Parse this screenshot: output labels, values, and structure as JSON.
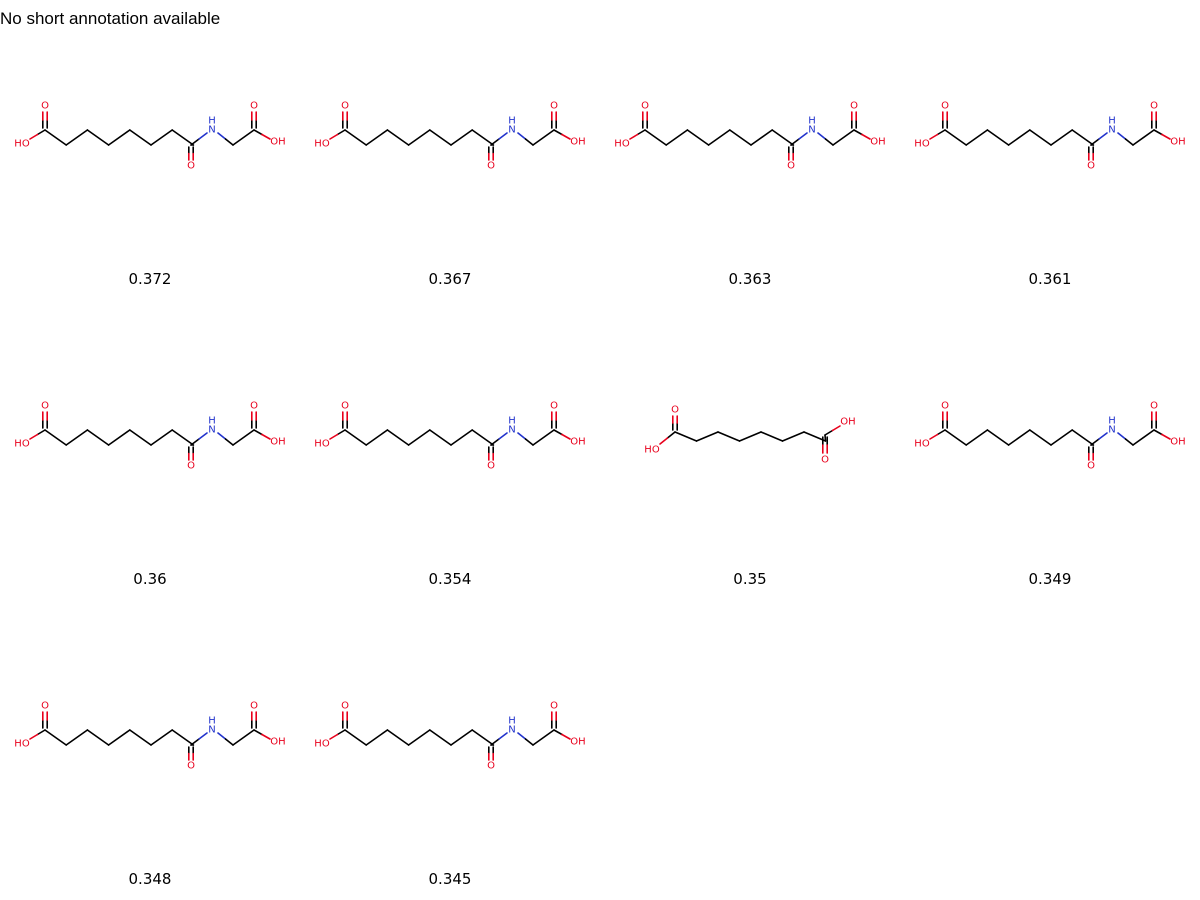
{
  "header": {
    "title": "No short annotation available"
  },
  "colors": {
    "carbon": "#000000",
    "oxygen": "#e8001c",
    "nitrogen": "#2233cc"
  },
  "atom_labels": {
    "oxygen": "O",
    "hydroxyl_left": "HO",
    "hydroxyl_right": "OH",
    "amine": "N",
    "amine_h": "H"
  },
  "molecules": [
    {
      "structure": "amide-glycine-conjugate",
      "score": "0.372"
    },
    {
      "structure": "amide-glycine-conjugate",
      "score": "0.367"
    },
    {
      "structure": "amide-glycine-conjugate",
      "score": "0.363"
    },
    {
      "structure": "amide-glycine-conjugate",
      "score": "0.361"
    },
    {
      "structure": "amide-glycine-conjugate",
      "score": "0.36"
    },
    {
      "structure": "amide-glycine-conjugate",
      "score": "0.354"
    },
    {
      "structure": "dicarboxylic-acid",
      "score": "0.35"
    },
    {
      "structure": "amide-glycine-conjugate",
      "score": "0.349"
    },
    {
      "structure": "amide-glycine-conjugate",
      "score": "0.348"
    },
    {
      "structure": "amide-glycine-conjugate",
      "score": "0.345"
    }
  ]
}
